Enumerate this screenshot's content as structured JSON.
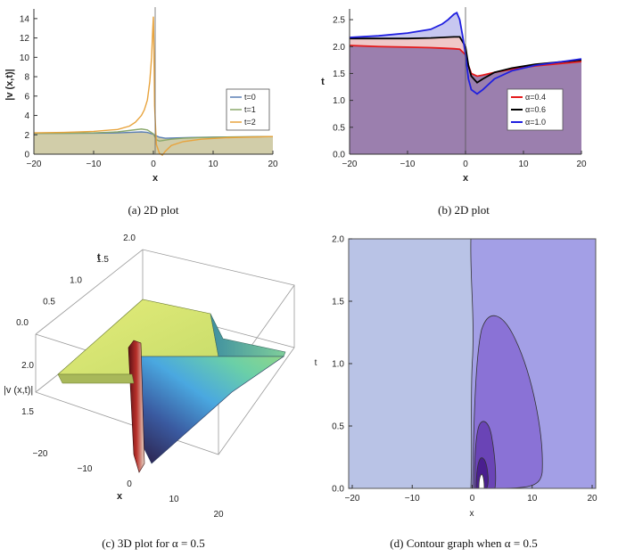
{
  "chart_data": [
    {
      "id": "a",
      "type": "line",
      "caption": "(a)  2D plot",
      "xlabel": "x",
      "ylabel": "|v (x,t)|",
      "xlim": [
        -20,
        20
      ],
      "ylim": [
        0,
        15
      ],
      "xticks": [
        "−20",
        "−10",
        "0",
        "10",
        "20"
      ],
      "yticks": [
        "0",
        "2",
        "4",
        "6",
        "8",
        "10",
        "12",
        "14"
      ],
      "legend": [
        "t=0",
        "t=1",
        "t=2"
      ],
      "colors": [
        "#5b7fb5",
        "#8aa86a",
        "#e8a33c"
      ],
      "fill": "#c9c49a",
      "series": [
        {
          "name": "t=0",
          "x": [
            -20,
            -15,
            -10,
            -6,
            -4,
            -2,
            -1,
            0,
            1,
            2,
            4,
            6,
            10,
            15,
            20
          ],
          "y": [
            2.15,
            2.16,
            2.17,
            2.2,
            2.25,
            2.3,
            2.25,
            2.05,
            1.75,
            1.65,
            1.68,
            1.72,
            1.76,
            1.79,
            1.82
          ]
        },
        {
          "name": "t=1",
          "x": [
            -20,
            -15,
            -10,
            -6,
            -4,
            -2,
            -1,
            0,
            0.5,
            1,
            2,
            3,
            5,
            8,
            12,
            20
          ],
          "y": [
            2.15,
            2.16,
            2.2,
            2.3,
            2.45,
            2.6,
            2.5,
            2.1,
            1.5,
            1.35,
            1.45,
            1.55,
            1.65,
            1.72,
            1.77,
            1.82
          ]
        },
        {
          "name": "t=2",
          "x": [
            -20,
            -15,
            -10,
            -6,
            -4,
            -3,
            -2,
            -1.5,
            -1,
            -0.6,
            -0.3,
            -0.1,
            0,
            0.1,
            0.2,
            0.5,
            1,
            1.5,
            2,
            3,
            5,
            8,
            12,
            20
          ],
          "y": [
            2.2,
            2.25,
            2.35,
            2.55,
            2.9,
            3.3,
            4.0,
            4.6,
            5.6,
            7.5,
            10,
            13,
            14.2,
            10.5,
            5,
            1.0,
            0.1,
            -0.1,
            0.3,
            0.9,
            1.3,
            1.55,
            1.7,
            1.82
          ]
        }
      ]
    },
    {
      "id": "b",
      "type": "area",
      "caption": "(b)  2D plot",
      "xlabel": "x",
      "ylabel": "t",
      "xlim": [
        -20,
        20
      ],
      "ylim": [
        0,
        2.7
      ],
      "xticks": [
        "−20",
        "−10",
        "0",
        "10",
        "20"
      ],
      "yticks": [
        "0.0",
        "0.5",
        "1.0",
        "1.5",
        "2.0",
        "2.5"
      ],
      "legend": [
        "α=0.4",
        "α=0.6",
        "α=1.0"
      ],
      "colors": [
        "#e41a1c",
        "#000000",
        "#1f1fe0"
      ],
      "fills": [
        "#9b7fae",
        "#f0c8c8",
        "#c7c7f0"
      ],
      "series": [
        {
          "name": "α=0.4",
          "x": [
            -20,
            -15,
            -10,
            -6,
            -4,
            -2,
            -1,
            0,
            0.5,
            1,
            2,
            3,
            5,
            8,
            12,
            20
          ],
          "y": [
            2.02,
            2.0,
            1.99,
            1.98,
            1.97,
            1.96,
            1.95,
            1.85,
            1.65,
            1.5,
            1.45,
            1.47,
            1.52,
            1.58,
            1.64,
            1.72
          ]
        },
        {
          "name": "α=0.6",
          "x": [
            -20,
            -15,
            -10,
            -6,
            -4,
            -2,
            -1,
            0,
            0.5,
            1,
            2,
            3,
            5,
            8,
            12,
            20
          ],
          "y": [
            2.15,
            2.15,
            2.15,
            2.16,
            2.17,
            2.18,
            2.18,
            2.0,
            1.65,
            1.45,
            1.33,
            1.4,
            1.52,
            1.6,
            1.67,
            1.75
          ]
        },
        {
          "name": "α=1.0",
          "x": [
            -20,
            -15,
            -10,
            -6,
            -4,
            -3,
            -2,
            -1.5,
            -1,
            -0.5,
            0,
            0.5,
            1,
            2,
            3,
            5,
            8,
            12,
            20
          ],
          "y": [
            2.17,
            2.2,
            2.25,
            2.32,
            2.42,
            2.5,
            2.6,
            2.63,
            2.5,
            2.2,
            1.85,
            1.4,
            1.2,
            1.12,
            1.2,
            1.4,
            1.55,
            1.65,
            1.77
          ]
        }
      ]
    },
    {
      "id": "c",
      "type": "surface",
      "caption": "(c) 3D plot for α = 0.5",
      "xlabel": "x",
      "zlabel": "|v (x,t)|",
      "tlabel": "t",
      "xticks": [
        "−20",
        "−10",
        "0",
        "10",
        "20"
      ],
      "tticks": [
        "0.0",
        "0.5",
        "1.0",
        "1.5",
        "2.0"
      ],
      "zticks": [
        "1.5",
        "2.0"
      ]
    },
    {
      "id": "d",
      "type": "contour",
      "caption": "(d) Contour graph when α = 0.5",
      "xlabel": "x",
      "ylabel": "t",
      "xlim": [
        -20,
        20
      ],
      "ylim": [
        0,
        2.0
      ],
      "xticks": [
        "−20",
        "−10",
        "0",
        "10",
        "20"
      ],
      "yticks": [
        "0.0",
        "0.5",
        "1.0",
        "1.5",
        "2.0"
      ],
      "colors": [
        "#b9c3e6",
        "#a39fe6",
        "#8a72d6",
        "#6a44b6",
        "#4a1f8f"
      ]
    }
  ]
}
